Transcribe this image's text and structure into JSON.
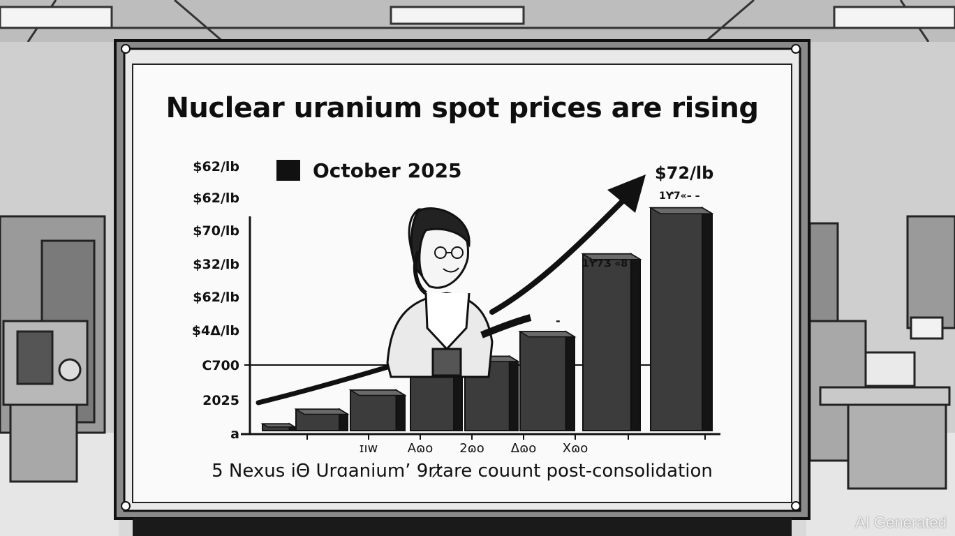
{
  "board": {
    "title": "Nuclear uranium spot prices are rising",
    "legend_label": "October 2025",
    "caption": "5 Nexus iΘ Urɑaniumʼ 9rt̷are couunt post-consolidation"
  },
  "chart_data": {
    "type": "bar",
    "title": "Nuclear uranium spot prices are rising",
    "legend": [
      "October 2025"
    ],
    "y_tick_labels": [
      "$62/lb",
      "$62/lb",
      "$70/lb",
      "$32/lb",
      "$62/lb",
      "$4Δ/lb",
      "C700",
      "2025",
      "a"
    ],
    "x_tick_labels": [
      "ɪıw",
      "Aɷo",
      "2ɷo",
      "Δɷo",
      "Xɷo"
    ],
    "values": [
      0.3,
      0.95,
      1.8,
      2.65,
      3.3,
      4.4,
      7.85,
      9.9
    ],
    "ylim": [
      0,
      12
    ],
    "annotations": [
      "$72/lb",
      "1Ƴ7«– –",
      "1Ƴ7Ʒ «8 –",
      "-"
    ],
    "trend": "upward arrow",
    "gridline": "C700"
  },
  "watermark": "AI Generated"
}
